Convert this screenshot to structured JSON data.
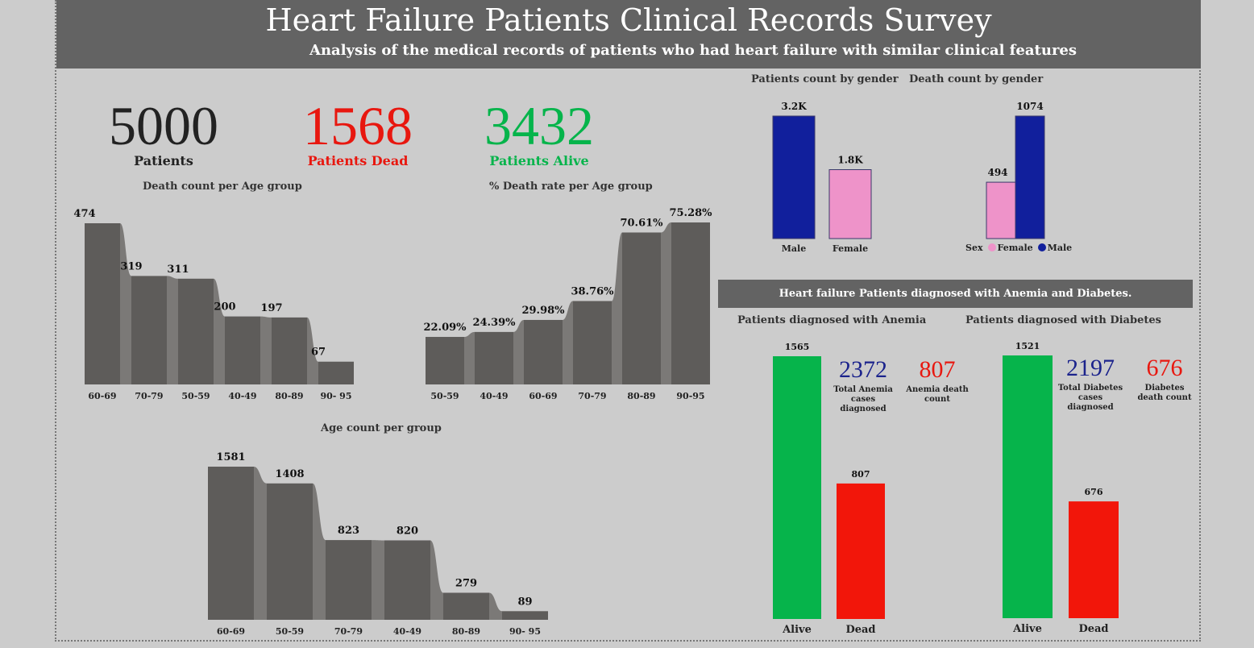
{
  "header": {
    "title": "Heart Failure Patients Clinical Records Survey",
    "subtitle": "Analysis of the medical records of patients who had heart failure with similar clinical features"
  },
  "kpis": {
    "total": {
      "value": "5000",
      "label": "Patients",
      "color": "#222222"
    },
    "dead": {
      "value": "1568",
      "label": "Patients Dead",
      "color": "#e8170f"
    },
    "alive": {
      "value": "3432",
      "label": "Patients Alive",
      "color": "#06b44b"
    }
  },
  "band_title": "Heart failure Patients diagnosed with Anemia and Diabetes.",
  "anemia_stats": {
    "total_value": "2372",
    "total_label": "Total Anemia cases diagnosed",
    "death_value": "807",
    "death_label": "Anemia death count"
  },
  "diabetes_stats": {
    "total_value": "2197",
    "total_label": "Total Diabetes cases diagnosed",
    "death_value": "676",
    "death_label": "Diabetes death count"
  },
  "gender_legend": {
    "title": "Sex",
    "female": "Female",
    "male": "Male"
  },
  "colors": {
    "bar_gray": "#5e5c5a",
    "ribbon_gray": "#7b7977",
    "male": "#111f9c",
    "female": "#ee93c9",
    "alive": "#06b44b",
    "dead": "#f2160a",
    "stat_blue": "#1b238c",
    "stat_red": "#e8170f"
  },
  "chart_data": [
    {
      "id": "death_age",
      "type": "bar",
      "title": "Death count per Age group",
      "categories": [
        "60-69",
        "70-79",
        "50-59",
        "40-49",
        "80-89",
        "90- 95"
      ],
      "values": [
        474,
        319,
        311,
        200,
        197,
        67
      ],
      "labels": [
        "474",
        "319",
        "311",
        "200",
        "197",
        "67"
      ],
      "ylim": [
        0,
        474
      ]
    },
    {
      "id": "rate_age",
      "type": "bar",
      "title": "% Death rate per Age group",
      "categories": [
        "50-59",
        "40-49",
        "60-69",
        "70-79",
        "80-89",
        "90-95"
      ],
      "values": [
        22.09,
        24.39,
        29.98,
        38.76,
        70.61,
        75.28
      ],
      "labels": [
        "22.09%",
        "24.39%",
        "29.98%",
        "38.76%",
        "70.61%",
        "75.28%"
      ],
      "ylim": [
        0,
        75.28
      ]
    },
    {
      "id": "age_count",
      "type": "bar",
      "title": "Age count per group",
      "categories": [
        "60-69",
        "50-59",
        "70-79",
        "40-49",
        "80-89",
        "90- 95"
      ],
      "values": [
        1581,
        1408,
        823,
        820,
        279,
        89
      ],
      "labels": [
        "1581",
        "1408",
        "823",
        "820",
        "279",
        "89"
      ],
      "ylim": [
        0,
        1581
      ]
    },
    {
      "id": "gender_count",
      "type": "bar",
      "title": "Patients count by gender",
      "categories": [
        "Male",
        "Female"
      ],
      "values": [
        3200,
        1800
      ],
      "labels": [
        "3.2K",
        "1.8K"
      ],
      "ylim": [
        0,
        3200
      ]
    },
    {
      "id": "gender_death",
      "type": "bar",
      "title": "Death count by gender",
      "categories": [
        "Female",
        "Male"
      ],
      "values": [
        494,
        1074
      ],
      "labels": [
        "494",
        "1074"
      ],
      "ylim": [
        0,
        1074
      ]
    },
    {
      "id": "anemia",
      "type": "bar",
      "title": "Patients diagnosed with Anemia",
      "categories": [
        "Alive",
        "Dead"
      ],
      "values": [
        1565,
        807
      ],
      "labels": [
        "1565",
        "807"
      ],
      "ylim": [
        0,
        1565
      ]
    },
    {
      "id": "diabetes",
      "type": "bar",
      "title": "Patients diagnosed with Diabetes",
      "categories": [
        "Alive",
        "Dead"
      ],
      "values": [
        1521,
        676
      ],
      "labels": [
        "1521",
        "676"
      ],
      "ylim": [
        0,
        1521
      ]
    }
  ]
}
